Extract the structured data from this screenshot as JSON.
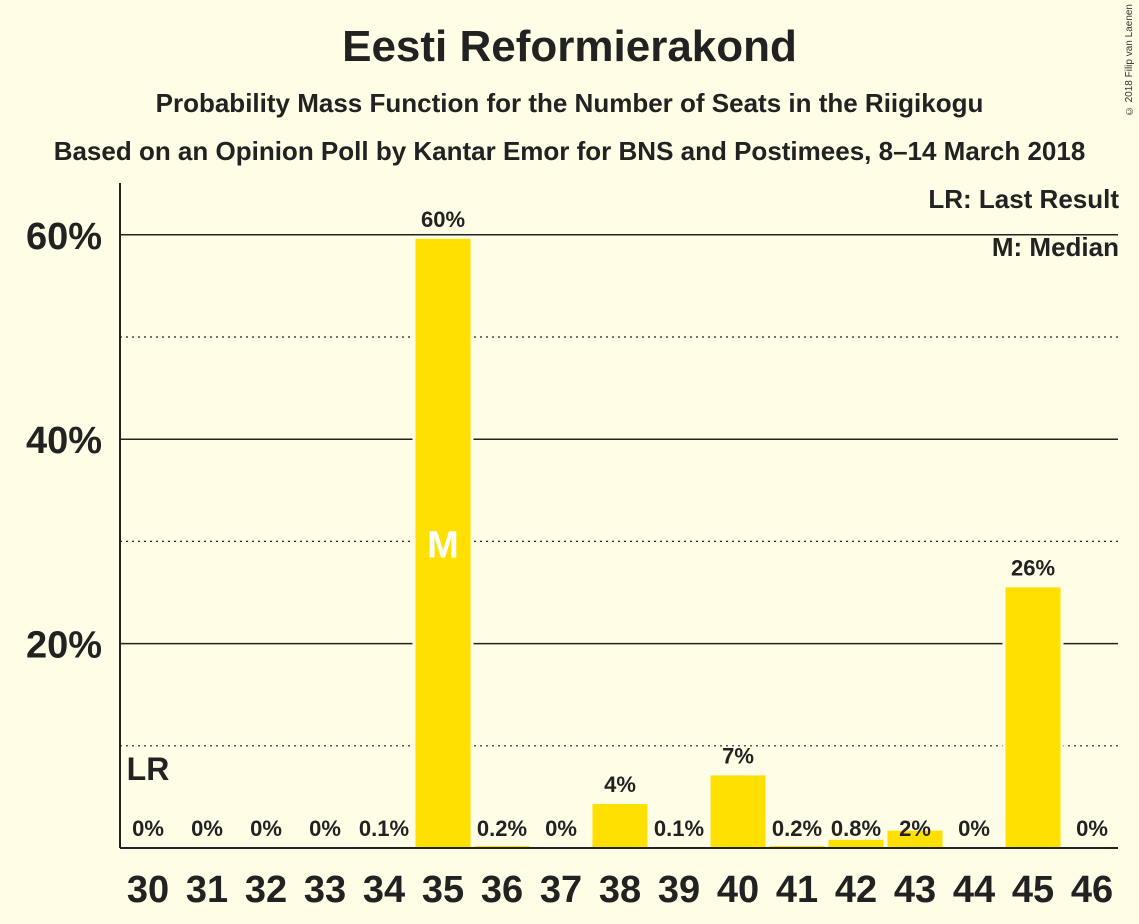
{
  "title": "Eesti Reformierakond",
  "subtitle": "Probability Mass Function for the Number of Seats in the Riigikogu",
  "subtitle2": "Based on an Opinion Poll by Kantar Emor for BNS and Postimees, 8–14 March 2018",
  "copyright": "© 2018 Filip van Laenen",
  "legend": {
    "last_result": "LR: Last Result",
    "median": "M: Median"
  },
  "colors": {
    "bar": "#FFE000",
    "background": "#FFFDE5",
    "text": "#222222"
  },
  "chart_data": {
    "type": "bar",
    "categories": [
      "30",
      "31",
      "32",
      "33",
      "34",
      "35",
      "36",
      "37",
      "38",
      "39",
      "40",
      "41",
      "42",
      "43",
      "44",
      "45",
      "46"
    ],
    "values": [
      0,
      0,
      0,
      0,
      0.1,
      59.6,
      0.2,
      0,
      4.3,
      0.1,
      7.1,
      0.2,
      0.8,
      1.7,
      0,
      25.5,
      0
    ],
    "labels": [
      "0%",
      "0%",
      "0%",
      "0%",
      "0.1%",
      "60%",
      "0.2%",
      "0%",
      "4%",
      "0.1%",
      "7%",
      "0.2%",
      "0.8%",
      "2%",
      "0%",
      "26%",
      "0%"
    ],
    "ylim": [
      0,
      65
    ],
    "yticks": [
      20,
      40,
      60
    ],
    "ytick_labels": [
      "20%",
      "40%",
      "60%"
    ],
    "minor_gridlines": [
      10,
      30,
      50
    ],
    "median_category": "35",
    "median_marker": "M",
    "last_result_category": "30",
    "last_result_marker": "LR"
  }
}
